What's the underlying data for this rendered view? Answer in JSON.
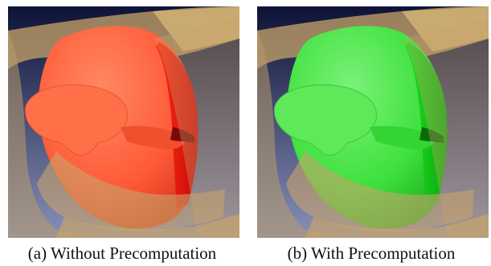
{
  "figures": [
    {
      "caption": "(a) Without Precomputation",
      "color": "#ff5a38",
      "shade": "#e01010"
    },
    {
      "caption": "(b) With Precomputation",
      "color": "#3ee03c",
      "shade": "#12d818"
    }
  ],
  "background": {
    "top": "#0d1236",
    "bottom": "#8790b8"
  },
  "surface_color": "#c8a46a"
}
